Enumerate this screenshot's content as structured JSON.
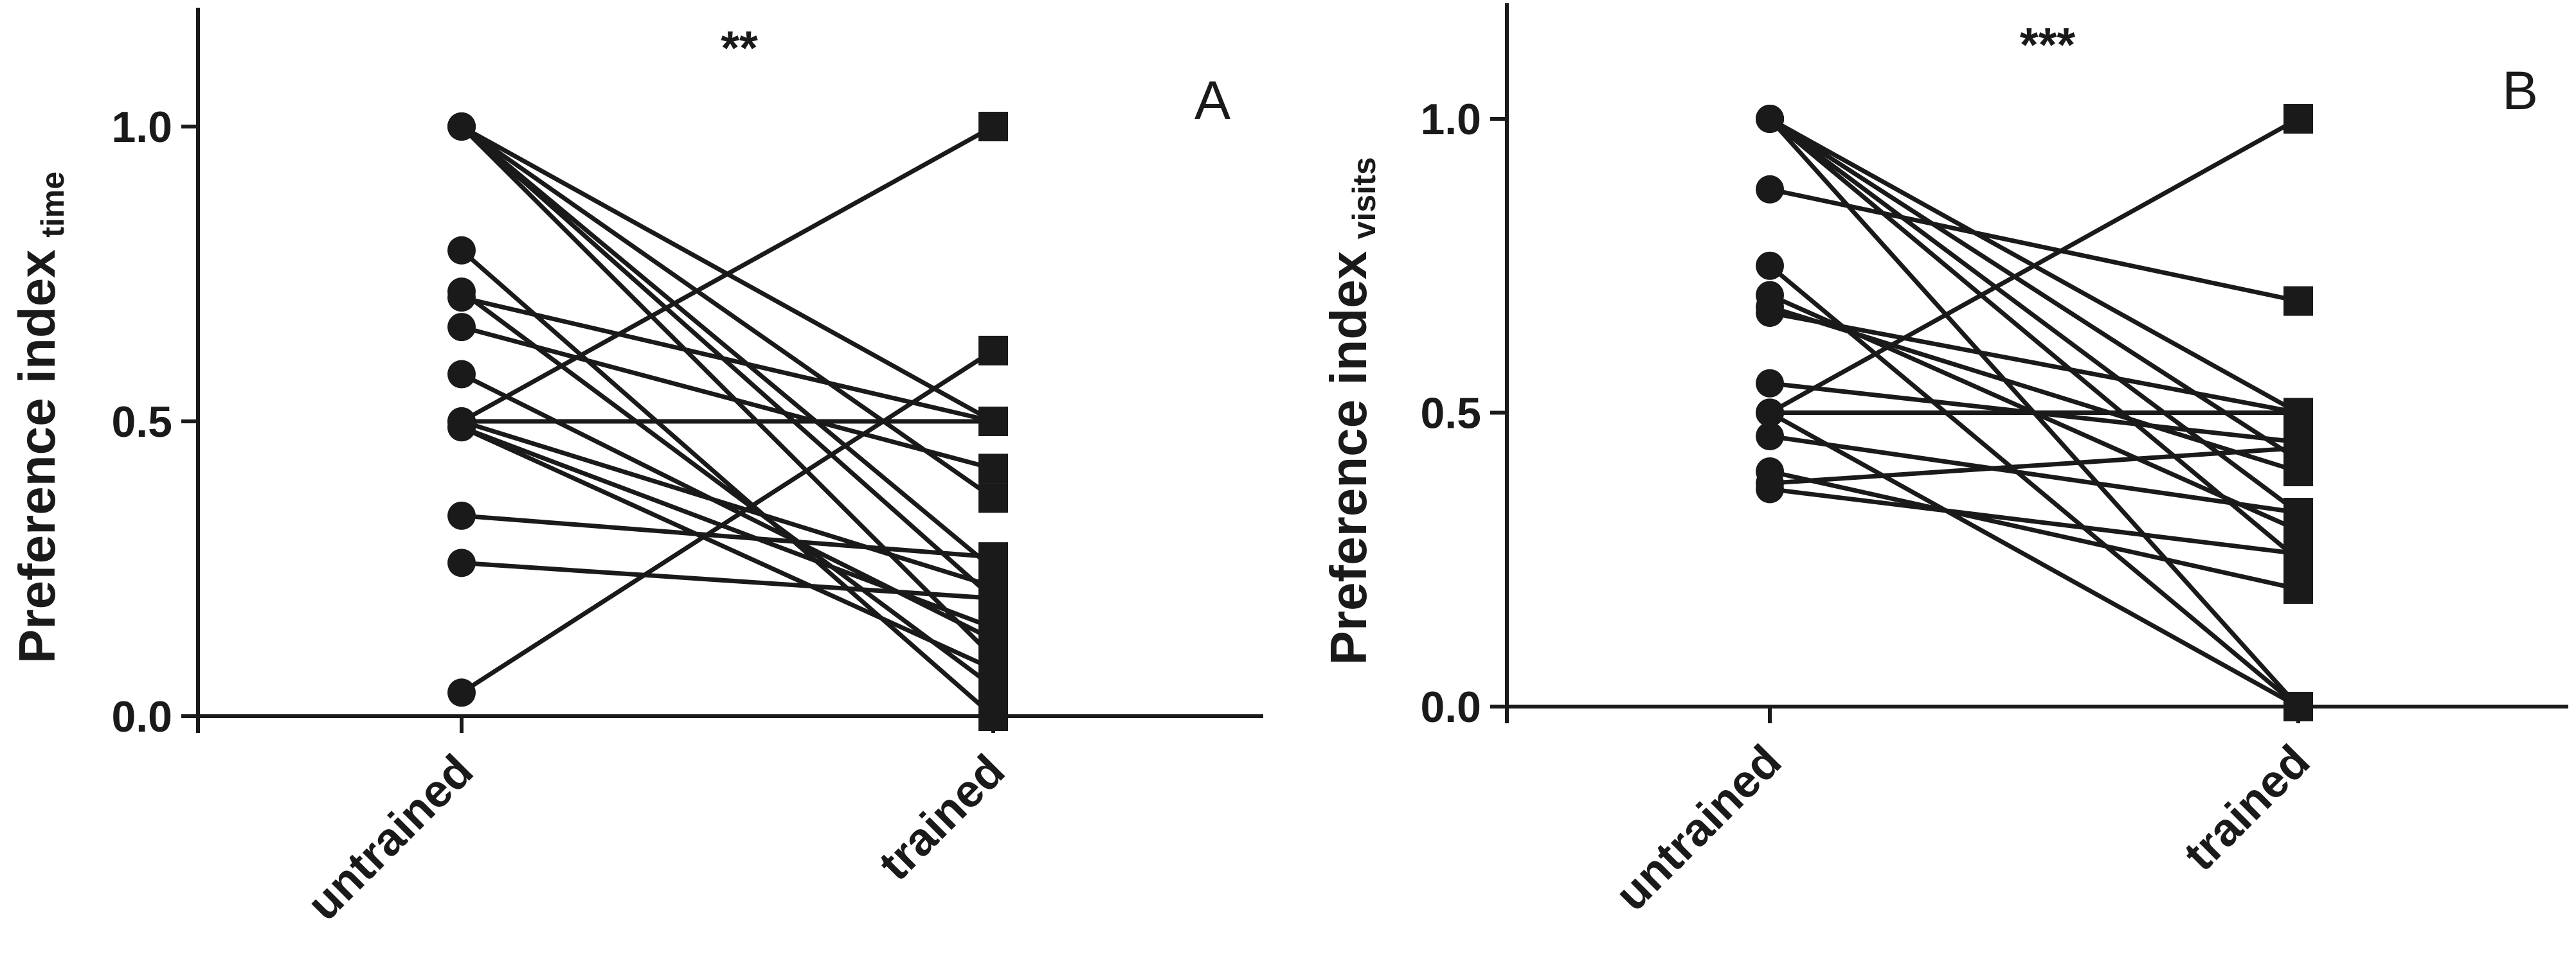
{
  "colors": {
    "ink": "#1a1a1a",
    "background": "#ffffff"
  },
  "chart_data": [
    {
      "type": "line",
      "panel": "A",
      "significance": "**",
      "ylabel": "Preference index",
      "ylabel_subscript": "time",
      "categories": [
        "untrained",
        "trained"
      ],
      "ylim": [
        0,
        1.2
      ],
      "yticks": [
        "0.0",
        "0.5",
        "1.0"
      ],
      "grid": false,
      "legend": "none",
      "series": [
        {
          "values": [
            1.0,
            0.5
          ]
        },
        {
          "values": [
            1.0,
            0.37
          ]
        },
        {
          "values": [
            1.0,
            0.25
          ]
        },
        {
          "values": [
            1.0,
            0.2
          ]
        },
        {
          "values": [
            1.0,
            0.1
          ]
        },
        {
          "values": [
            0.79,
            0.0
          ]
        },
        {
          "values": [
            0.72,
            0.05
          ]
        },
        {
          "values": [
            0.71,
            0.5
          ]
        },
        {
          "values": [
            0.66,
            0.42
          ]
        },
        {
          "values": [
            0.58,
            0.13
          ]
        },
        {
          "values": [
            0.5,
            1.0
          ]
        },
        {
          "values": [
            0.5,
            0.5
          ]
        },
        {
          "values": [
            0.5,
            0.22
          ]
        },
        {
          "values": [
            0.49,
            0.15
          ]
        },
        {
          "values": [
            0.49,
            0.08
          ]
        },
        {
          "values": [
            0.34,
            0.27
          ]
        },
        {
          "values": [
            0.26,
            0.2
          ]
        },
        {
          "values": [
            0.04,
            0.62
          ]
        }
      ]
    },
    {
      "type": "line",
      "panel": "B",
      "significance": "***",
      "ylabel": "Preference index",
      "ylabel_subscript": "visits",
      "categories": [
        "untrained",
        "trained"
      ],
      "ylim": [
        0,
        1.2
      ],
      "yticks": [
        "0.0",
        "0.5",
        "1.0"
      ],
      "grid": false,
      "legend": "none",
      "series": [
        {
          "values": [
            1.0,
            0.5
          ]
        },
        {
          "values": [
            1.0,
            0.42
          ]
        },
        {
          "values": [
            1.0,
            0.33
          ]
        },
        {
          "values": [
            1.0,
            0.25
          ]
        },
        {
          "values": [
            1.0,
            0.0
          ]
        },
        {
          "values": [
            0.88,
            0.69
          ]
        },
        {
          "values": [
            0.75,
            0.0
          ]
        },
        {
          "values": [
            0.7,
            0.3
          ]
        },
        {
          "values": [
            0.68,
            0.4
          ]
        },
        {
          "values": [
            0.67,
            0.5
          ]
        },
        {
          "values": [
            0.55,
            0.45
          ]
        },
        {
          "values": [
            0.5,
            1.0
          ]
        },
        {
          "values": [
            0.5,
            0.5
          ]
        },
        {
          "values": [
            0.5,
            0.0
          ]
        },
        {
          "values": [
            0.46,
            0.33
          ]
        },
        {
          "values": [
            0.4,
            0.2
          ]
        },
        {
          "values": [
            0.38,
            0.44
          ]
        },
        {
          "values": [
            0.37,
            0.26
          ]
        }
      ]
    }
  ]
}
